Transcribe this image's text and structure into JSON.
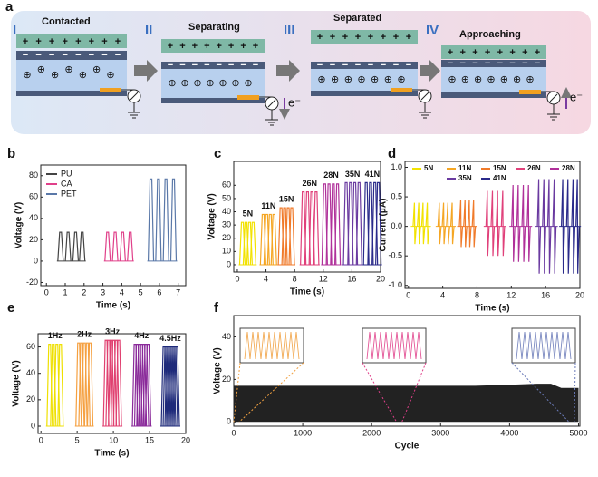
{
  "diagram": {
    "panel": "a",
    "plus": "+",
    "minus": "−",
    "ion": "⊕",
    "electron": "e⁻",
    "stages": [
      {
        "numeral": "I",
        "title": "Contacted"
      },
      {
        "numeral": "II",
        "title": "Separating"
      },
      {
        "numeral": "III",
        "title": "Separated"
      },
      {
        "numeral": "IV",
        "title": "Approaching"
      }
    ]
  },
  "chart_data": [
    {
      "type": "spike",
      "panel": "b",
      "xlabel": "Time (s)",
      "ylabel": "Voltage (V)",
      "xlim": [
        -0.3,
        7.4
      ],
      "ylim": [
        -23,
        90
      ],
      "xticks": [
        0,
        1,
        2,
        3,
        4,
        5,
        6,
        7
      ],
      "yticks": [
        -20,
        0,
        20,
        40,
        60,
        80
      ],
      "legend": "upper left",
      "series": [
        {
          "name": "PU",
          "color": "#444444",
          "x": [
            0.75,
            1.15,
            1.55,
            1.9
          ],
          "values": [
            27,
            27,
            27,
            27
          ]
        },
        {
          "name": "CA",
          "color": "#e0408a",
          "x": [
            3.25,
            3.65,
            4.05,
            4.45
          ],
          "values": [
            27,
            27,
            27,
            27
          ]
        },
        {
          "name": "PET",
          "color": "#5a78a8",
          "x": [
            5.55,
            5.95,
            6.35,
            6.75
          ],
          "values": [
            77,
            77,
            77,
            77
          ]
        }
      ]
    },
    {
      "type": "spike",
      "panel": "c",
      "xlabel": "Time (s)",
      "ylabel": "Voltage (V)",
      "xlim": [
        -0.5,
        20
      ],
      "ylim": [
        -5.5,
        78
      ],
      "xticks": [
        0,
        4,
        8,
        12,
        16,
        20
      ],
      "yticks": [
        0,
        10,
        20,
        30,
        40,
        50,
        60
      ],
      "legend": "labels",
      "series": [
        {
          "name": "5N",
          "color": "#f2e200",
          "x": [
            0.7,
            1.2,
            1.7,
            2.2
          ],
          "values": [
            32,
            32,
            32,
            32
          ]
        },
        {
          "name": "11N",
          "color": "#f5a623",
          "x": [
            3.6,
            4.1,
            4.6,
            5.1
          ],
          "values": [
            38,
            38,
            38,
            38
          ]
        },
        {
          "name": "15N",
          "color": "#f07a2a",
          "x": [
            6.1,
            6.6,
            7.1,
            7.6
          ],
          "values": [
            43,
            43,
            43,
            43
          ]
        },
        {
          "name": "26N",
          "color": "#e0407a",
          "x": [
            9.2,
            9.8,
            10.4,
            11.0
          ],
          "values": [
            55,
            55,
            55,
            55
          ]
        },
        {
          "name": "28N",
          "color": "#b0309a",
          "x": [
            12.2,
            12.8,
            13.4,
            14.0
          ],
          "values": [
            61,
            61,
            61,
            61
          ]
        },
        {
          "name": "35N",
          "color": "#6a3aa0",
          "x": [
            15.2,
            15.8,
            16.4,
            17.0
          ],
          "values": [
            62,
            62,
            62,
            62
          ]
        },
        {
          "name": "41N",
          "color": "#2a2a8a",
          "x": [
            18.0,
            18.6,
            19.2,
            19.7
          ],
          "values": [
            62,
            62,
            62,
            62
          ]
        }
      ]
    },
    {
      "type": "bipolar",
      "panel": "d",
      "xlabel": "Time (s)",
      "ylabel": "Current (μA)",
      "xlim": [
        -0.4,
        20
      ],
      "ylim": [
        -1.05,
        1.1
      ],
      "xticks": [
        0,
        4,
        8,
        12,
        16,
        20
      ],
      "yticks": [
        {
          "value": -1,
          "label": "-1.0"
        },
        -0.5,
        {
          "value": 0,
          "label": "0.0"
        },
        0.5,
        {
          "value": 1,
          "label": "1.0"
        }
      ],
      "legend": "top",
      "series": [
        {
          "name": "5N",
          "color": "#f2e200",
          "x": [
            0.7,
            1.2,
            1.7,
            2.2
          ],
          "values": [
            0.4,
            0.4,
            0.4,
            0.4
          ],
          "min_values": [
            -0.3,
            -0.3,
            -0.3,
            -0.3
          ]
        },
        {
          "name": "11N",
          "color": "#f5a623",
          "x": [
            3.6,
            4.1,
            4.6,
            5.1
          ],
          "values": [
            0.4,
            0.4,
            0.4,
            0.4
          ],
          "min_values": [
            -0.3,
            -0.3,
            -0.3,
            -0.3
          ]
        },
        {
          "name": "15N",
          "color": "#f07a2a",
          "x": [
            6.1,
            6.6,
            7.1,
            7.6
          ],
          "values": [
            0.45,
            0.45,
            0.45,
            0.45
          ],
          "min_values": [
            -0.35,
            -0.35,
            -0.35,
            -0.35
          ]
        },
        {
          "name": "26N",
          "color": "#e0407a",
          "x": [
            9.2,
            9.8,
            10.4,
            11.0
          ],
          "values": [
            0.6,
            0.6,
            0.6,
            0.6
          ],
          "min_values": [
            -0.5,
            -0.5,
            -0.5,
            -0.5
          ]
        },
        {
          "name": "28N",
          "color": "#b0309a",
          "x": [
            12.2,
            12.8,
            13.4,
            14.0
          ],
          "values": [
            0.7,
            0.7,
            0.7,
            0.7
          ],
          "min_values": [
            -0.6,
            -0.6,
            -0.6,
            -0.6
          ]
        },
        {
          "name": "35N",
          "color": "#6a3aa0",
          "x": [
            15.2,
            15.8,
            16.4,
            17.0
          ],
          "values": [
            0.8,
            0.8,
            0.8,
            0.8
          ],
          "min_values": [
            -0.8,
            -0.8,
            -0.8,
            -0.8
          ]
        },
        {
          "name": "41N",
          "color": "#2a2a8a",
          "x": [
            18.0,
            18.6,
            19.2,
            19.7
          ],
          "values": [
            0.8,
            0.8,
            0.8,
            0.8
          ],
          "min_values": [
            -0.8,
            -0.8,
            -0.8,
            -0.8
          ]
        }
      ]
    },
    {
      "type": "spike",
      "panel": "e",
      "xlabel": "Time (s)",
      "ylabel": "Voltage (V)",
      "xlim": [
        -0.4,
        20
      ],
      "ylim": [
        -5.5,
        70
      ],
      "xticks": [
        0,
        5,
        10,
        15,
        20
      ],
      "yticks": [
        0,
        20,
        40,
        60
      ],
      "legend": "labels",
      "series": [
        {
          "name": "1Hz",
          "color": "#efe000",
          "x": [
            1.2,
            1.7,
            2.2,
            2.7
          ],
          "values": [
            62,
            62,
            62,
            62
          ]
        },
        {
          "name": "2Hz",
          "color": "#f5a040",
          "x": [
            5.2,
            5.6,
            6.0,
            6.4,
            6.8
          ],
          "values": [
            63,
            63,
            63,
            63,
            63
          ]
        },
        {
          "name": "3Hz",
          "color": "#e04070",
          "x": [
            9.0,
            9.35,
            9.7,
            10.05,
            10.4,
            10.75
          ],
          "values": [
            65,
            65,
            65,
            65,
            65,
            65
          ]
        },
        {
          "name": "4Hz",
          "color": "#8a2a9a",
          "x": [
            13.0,
            13.3,
            13.6,
            13.9,
            14.2,
            14.5,
            14.8
          ],
          "values": [
            62,
            62,
            62,
            62,
            62,
            62,
            62
          ]
        },
        {
          "name": "4.5Hz",
          "color": "#1e2a7a",
          "x": [
            17.0,
            17.25,
            17.5,
            17.75,
            18.0,
            18.25,
            18.5,
            18.75
          ],
          "values": [
            60,
            60,
            60,
            60,
            60,
            60,
            60,
            60
          ]
        }
      ]
    },
    {
      "type": "band",
      "panel": "f",
      "xlabel": "Cycle",
      "ylabel": "Voltage (V)",
      "xlim": [
        0,
        5020
      ],
      "ylim": [
        -2,
        50
      ],
      "xticks": [
        0,
        1000,
        2000,
        3000,
        4000,
        5000
      ],
      "yticks": [
        0,
        20,
        40
      ],
      "color": "#222222",
      "x": [
        0,
        500,
        1000,
        1500,
        2000,
        2500,
        3000,
        3500,
        4000,
        4400,
        4600,
        4750,
        5000
      ],
      "values": [
        17,
        17,
        17,
        17,
        17,
        17,
        17,
        17,
        17.5,
        18,
        18,
        16,
        16
      ]
    }
  ]
}
